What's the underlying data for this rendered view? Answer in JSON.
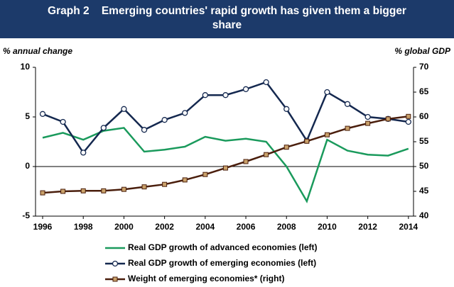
{
  "chart_data": {
    "type": "line",
    "graph_label": "Graph 2",
    "title": "Emerging countries' rapid growth has given them a bigger share",
    "y_label": "% annual change",
    "y2_label": "% global GDP",
    "x": [
      1996,
      1997,
      1998,
      1999,
      2000,
      2001,
      2002,
      2003,
      2004,
      2005,
      2006,
      2007,
      2008,
      2009,
      2010,
      2011,
      2012,
      2013,
      2014
    ],
    "xlim": [
      1995.65,
      2014.25
    ],
    "xticks": [
      1996,
      1998,
      2000,
      2002,
      2004,
      2006,
      2008,
      2010,
      2012,
      2014
    ],
    "ylim": [
      -5,
      10
    ],
    "yticks": [
      -5,
      0,
      5,
      10
    ],
    "y2lim": [
      40,
      70
    ],
    "y2ticks": [
      40,
      45,
      50,
      55,
      60,
      65,
      70
    ],
    "series": [
      {
        "name": "Real GDP growth of advanced economies (left)",
        "color": "#1a9a5c",
        "marker": "none",
        "values": [
          2.9,
          3.4,
          2.7,
          3.6,
          3.9,
          1.5,
          1.7,
          2.0,
          3.0,
          2.6,
          2.8,
          2.5,
          0.0,
          -3.5,
          2.7,
          1.6,
          1.2,
          1.1,
          1.8
        ]
      },
      {
        "name": "Real GDP growth of emerging economies (left)",
        "color": "#14284f",
        "marker": "circle",
        "values": [
          5.3,
          4.5,
          1.4,
          3.9,
          5.8,
          3.7,
          4.7,
          5.4,
          7.2,
          7.2,
          7.8,
          8.5,
          5.8,
          2.6,
          7.5,
          6.3,
          5.0,
          4.8,
          4.5
        ]
      },
      {
        "name": "Weight of emerging economies* (right)",
        "color": "#4a1e0c",
        "marker": "square",
        "axis": "y2",
        "values": [
          44.7,
          45.0,
          45.1,
          45.1,
          45.4,
          45.9,
          46.4,
          47.3,
          48.4,
          49.7,
          51.0,
          52.4,
          53.9,
          55.1,
          56.4,
          57.7,
          58.7,
          59.6,
          60.1
        ]
      }
    ]
  }
}
